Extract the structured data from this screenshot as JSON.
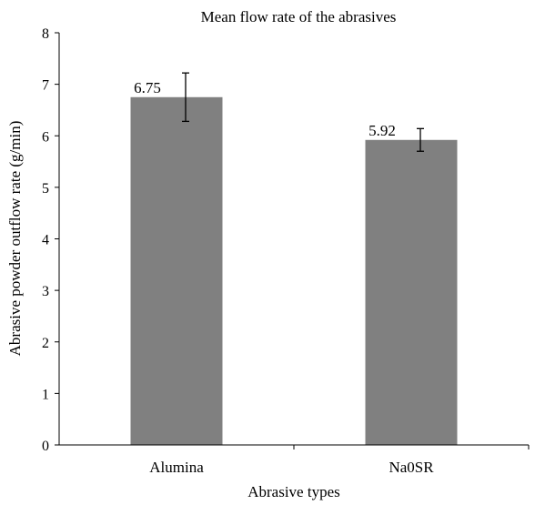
{
  "chart_data": {
    "type": "bar",
    "title": "Mean flow rate of the abrasives",
    "xlabel": "Abrasive types",
    "ylabel": "Abrasive powder outflow rate (g/min)",
    "categories": [
      "Alumina",
      "Na0SR"
    ],
    "values": [
      6.75,
      5.92
    ],
    "data_labels": [
      "6.75",
      "5.92"
    ],
    "error_bars": [
      {
        "low": 6.28,
        "high": 7.22
      },
      {
        "low": 5.7,
        "high": 6.14
      }
    ],
    "ylim": [
      0,
      8
    ],
    "yticks": [
      "0",
      "1",
      "2",
      "3",
      "4",
      "5",
      "6",
      "7",
      "8"
    ],
    "grid": false,
    "legend": "none",
    "bar_color": "#808080"
  }
}
